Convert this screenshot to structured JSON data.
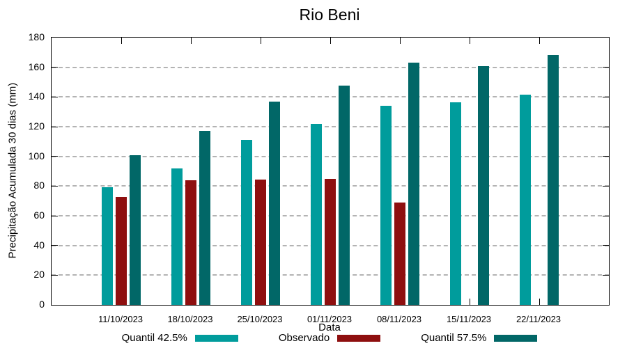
{
  "chart_data": {
    "type": "bar",
    "title": "Rio Beni",
    "xlabel": "Data",
    "ylabel": "Precipitação Acumulada 30 dias (mm)",
    "ylim": [
      0,
      180
    ],
    "ytick_step": 20,
    "grid": "horizontal dashed gridlines at each y tick",
    "legend_position": "bottom center",
    "categories": [
      "11/10/2023",
      "18/10/2023",
      "25/10/2023",
      "01/11/2023",
      "08/11/2023",
      "15/11/2023",
      "22/11/2023"
    ],
    "series": [
      {
        "name": "Quantil 42.5%",
        "color": "#009c9c",
        "values": [
          79,
          92,
          111,
          122,
          134,
          136.5,
          141.5
        ]
      },
      {
        "name": "Observado",
        "color": "#8e0f0f",
        "values": [
          72.5,
          84,
          84.5,
          85,
          69,
          null,
          null
        ]
      },
      {
        "name": "Quantil 57.5%",
        "color": "#016767",
        "values": [
          101,
          117,
          137,
          147.5,
          163,
          161,
          168.5
        ]
      }
    ]
  }
}
